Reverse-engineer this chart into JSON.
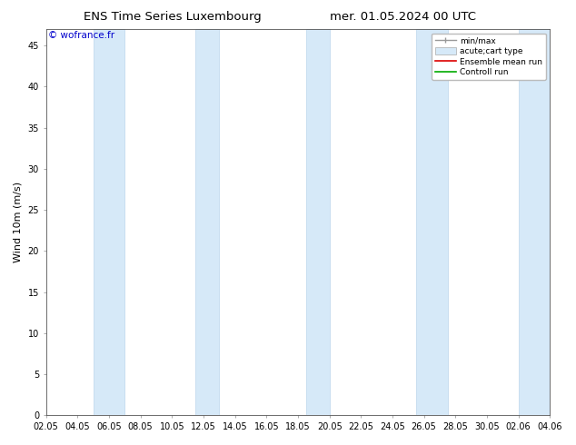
{
  "title_left": "ENS Time Series Luxembourg",
  "title_right": "mer. 01.05.2024 00 UTC",
  "ylabel": "Wind 10m (m/s)",
  "watermark": "© wofrance.fr",
  "ylim": [
    0,
    47
  ],
  "yticks": [
    0,
    5,
    10,
    15,
    20,
    25,
    30,
    35,
    40,
    45
  ],
  "xtick_labels": [
    "02.05",
    "04.05",
    "06.05",
    "08.05",
    "10.05",
    "12.05",
    "14.05",
    "16.05",
    "18.05",
    "20.05",
    "22.05",
    "24.05",
    "26.05",
    "28.05",
    "30.05",
    "02.06",
    "04.06"
  ],
  "xtick_positions": [
    0,
    2,
    4,
    6,
    8,
    10,
    12,
    14,
    16,
    18,
    20,
    22,
    24,
    26,
    28,
    30,
    32
  ],
  "band_color": "#d6e9f8",
  "band_edge_color": "#b0cfe8",
  "background_color": "#ffffff",
  "title_fontsize": 9.5,
  "axis_label_fontsize": 8,
  "tick_fontsize": 7,
  "watermark_fontsize": 7.5,
  "legend_fontsize": 6.5,
  "bands": [
    {
      "x_start": 3.0,
      "x_end": 5.0
    },
    {
      "x_start": 9.5,
      "x_end": 11.0
    },
    {
      "x_start": 16.5,
      "x_end": 18.0
    },
    {
      "x_start": 23.5,
      "x_end": 25.5
    },
    {
      "x_start": 30.0,
      "x_end": 32.5
    }
  ]
}
